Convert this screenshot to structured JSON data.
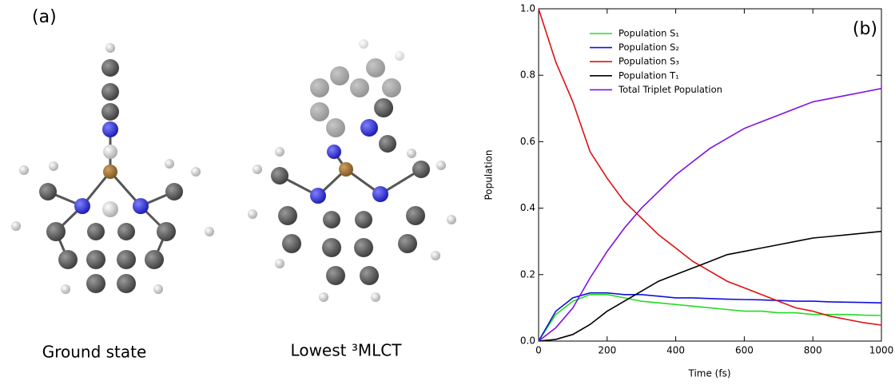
{
  "panel_a": {
    "label": "(a)",
    "captions": [
      "Ground state",
      "Lowest ³MLCT"
    ]
  },
  "chart_data": {
    "type": "line",
    "panel_label": "(b)",
    "x_label": "Time (fs)",
    "y_label": "Population",
    "x": [
      0,
      50,
      100,
      150,
      200,
      250,
      300,
      350,
      400,
      450,
      500,
      550,
      600,
      650,
      700,
      750,
      800,
      850,
      900,
      950,
      1000
    ],
    "series": [
      {
        "name": "Population S₁",
        "color": "#22dd22",
        "values": [
          0,
          0.08,
          0.12,
          0.14,
          0.14,
          0.13,
          0.12,
          0.115,
          0.11,
          0.105,
          0.1,
          0.095,
          0.09,
          0.09,
          0.085,
          0.085,
          0.08,
          0.08,
          0.08,
          0.078,
          0.077
        ]
      },
      {
        "name": "Population S₂",
        "color": "#1010dd",
        "values": [
          0,
          0.09,
          0.13,
          0.145,
          0.145,
          0.14,
          0.14,
          0.135,
          0.13,
          0.13,
          0.128,
          0.126,
          0.125,
          0.124,
          0.122,
          0.12,
          0.12,
          0.118,
          0.117,
          0.116,
          0.115
        ]
      },
      {
        "name": "Population S₃",
        "color": "#e01010",
        "values": [
          1.0,
          0.84,
          0.72,
          0.57,
          0.49,
          0.42,
          0.37,
          0.32,
          0.28,
          0.24,
          0.21,
          0.18,
          0.16,
          0.14,
          0.12,
          0.1,
          0.09,
          0.075,
          0.065,
          0.055,
          0.048
        ]
      },
      {
        "name": "Population T₁",
        "color": "#000000",
        "values": [
          0,
          0.005,
          0.02,
          0.05,
          0.09,
          0.12,
          0.15,
          0.18,
          0.2,
          0.22,
          0.24,
          0.26,
          0.27,
          0.28,
          0.29,
          0.3,
          0.31,
          0.315,
          0.32,
          0.325,
          0.33
        ]
      },
      {
        "name": "Total Triplet Population",
        "color": "#8010e0",
        "values": [
          0,
          0.04,
          0.1,
          0.19,
          0.27,
          0.34,
          0.4,
          0.45,
          0.5,
          0.54,
          0.58,
          0.61,
          0.64,
          0.66,
          0.68,
          0.7,
          0.72,
          0.73,
          0.74,
          0.75,
          0.76
        ]
      }
    ],
    "xlim": [
      0,
      1000
    ],
    "xticks": [
      0,
      200,
      400,
      600,
      800,
      1000
    ],
    "ylim": [
      0,
      1
    ],
    "yticks": [
      {
        "value": 0,
        "label": "0.0"
      },
      0.2,
      0.4,
      0.6,
      0.8,
      {
        "value": 1,
        "label": "1.0"
      }
    ],
    "grid": false,
    "legend": "upper left"
  }
}
